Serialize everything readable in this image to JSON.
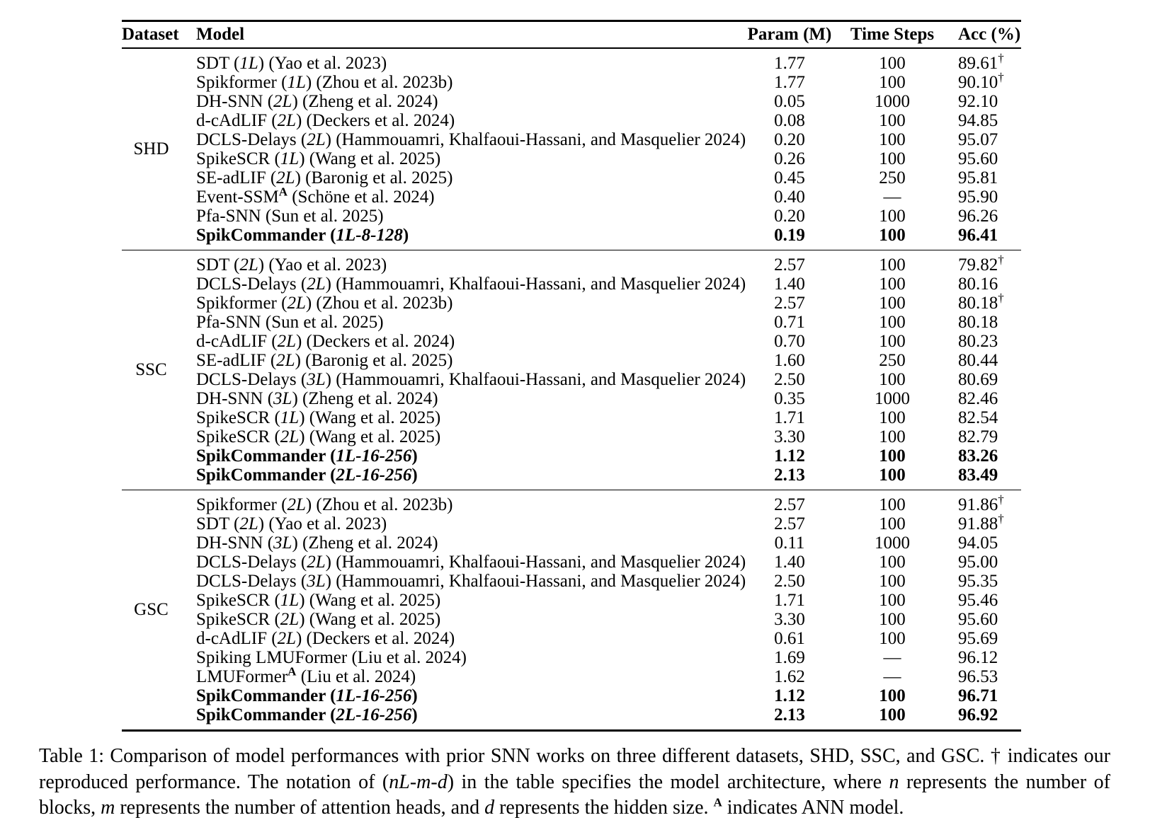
{
  "table": {
    "headers": {
      "dataset": "Dataset",
      "model": "Model",
      "param": "Param (M)",
      "steps": "Time Steps",
      "acc": "Acc (%)"
    },
    "sections": [
      {
        "dataset": "SHD",
        "rows": [
          {
            "model": [
              {
                "t": "SDT ("
              },
              {
                "t": "1L",
                "i": true
              },
              {
                "t": ") (Yao et al. 2023)"
              }
            ],
            "param": "1.77",
            "steps": "100",
            "acc": "89.61",
            "dagger": true
          },
          {
            "model": [
              {
                "t": "Spikformer ("
              },
              {
                "t": "1L",
                "i": true
              },
              {
                "t": ") (Zhou et al. 2023b)"
              }
            ],
            "param": "1.77",
            "steps": "100",
            "acc": "90.10",
            "dagger": true
          },
          {
            "model": [
              {
                "t": "DH-SNN ("
              },
              {
                "t": "2L",
                "i": true
              },
              {
                "t": ") (Zheng et al. 2024)"
              }
            ],
            "param": "0.05",
            "steps": "1000",
            "acc": "92.10"
          },
          {
            "model": [
              {
                "t": "d-cAdLIF ("
              },
              {
                "t": "2L",
                "i": true
              },
              {
                "t": ") (Deckers et al. 2024)"
              }
            ],
            "param": "0.08",
            "steps": "100",
            "acc": "94.85"
          },
          {
            "model": [
              {
                "t": "DCLS-Delays ("
              },
              {
                "t": "2L",
                "i": true
              },
              {
                "t": ") (Hammouamri, Khalfaoui-Hassani, and Masquelier 2024)"
              }
            ],
            "param": "0.20",
            "steps": "100",
            "acc": "95.07"
          },
          {
            "model": [
              {
                "t": "SpikeSCR ("
              },
              {
                "t": "1L",
                "i": true
              },
              {
                "t": ") (Wang et al. 2025)"
              }
            ],
            "param": "0.26",
            "steps": "100",
            "acc": "95.60"
          },
          {
            "model": [
              {
                "t": "SE-adLIF ("
              },
              {
                "t": "2L",
                "i": true
              },
              {
                "t": ") (Baronig et al. 2025)"
              }
            ],
            "param": "0.45",
            "steps": "250",
            "acc": "95.81"
          },
          {
            "model": [
              {
                "t": "Event-SSM"
              },
              {
                "t": "A",
                "sup": true,
                "b": true
              },
              {
                "t": " (Schöne et al. 2024)"
              }
            ],
            "param": "0.40",
            "steps": "—",
            "acc": "95.90"
          },
          {
            "model": [
              {
                "t": "Pfa-SNN (Sun et al. 2025)"
              }
            ],
            "param": "0.20",
            "steps": "100",
            "acc": "96.26"
          },
          {
            "model": [
              {
                "t": "SpikCommander ("
              },
              {
                "t": "1L-8-128",
                "i": true
              },
              {
                "t": ")"
              }
            ],
            "param": "0.19",
            "steps": "100",
            "acc": "96.41",
            "bold": true
          }
        ]
      },
      {
        "dataset": "SSC",
        "rows": [
          {
            "model": [
              {
                "t": "SDT ("
              },
              {
                "t": "2L",
                "i": true
              },
              {
                "t": ") (Yao et al. 2023)"
              }
            ],
            "param": "2.57",
            "steps": "100",
            "acc": "79.82",
            "dagger": true
          },
          {
            "model": [
              {
                "t": "DCLS-Delays ("
              },
              {
                "t": "2L",
                "i": true
              },
              {
                "t": ") (Hammouamri, Khalfaoui-Hassani, and Masquelier 2024)"
              }
            ],
            "param": "1.40",
            "steps": "100",
            "acc": "80.16"
          },
          {
            "model": [
              {
                "t": "Spikformer ("
              },
              {
                "t": "2L",
                "i": true
              },
              {
                "t": ") (Zhou et al. 2023b)"
              }
            ],
            "param": "2.57",
            "steps": "100",
            "acc": "80.18",
            "dagger": true
          },
          {
            "model": [
              {
                "t": "Pfa-SNN (Sun et al. 2025)"
              }
            ],
            "param": "0.71",
            "steps": "100",
            "acc": "80.18"
          },
          {
            "model": [
              {
                "t": "d-cAdLIF ("
              },
              {
                "t": "2L",
                "i": true
              },
              {
                "t": ") (Deckers et al. 2024)"
              }
            ],
            "param": "0.70",
            "steps": "100",
            "acc": "80.23"
          },
          {
            "model": [
              {
                "t": "SE-adLIF ("
              },
              {
                "t": "2L",
                "i": true
              },
              {
                "t": ") (Baronig et al. 2025)"
              }
            ],
            "param": "1.60",
            "steps": "250",
            "acc": "80.44"
          },
          {
            "model": [
              {
                "t": "DCLS-Delays ("
              },
              {
                "t": "3L",
                "i": true
              },
              {
                "t": ") (Hammouamri, Khalfaoui-Hassani, and Masquelier 2024)"
              }
            ],
            "param": "2.50",
            "steps": "100",
            "acc": "80.69"
          },
          {
            "model": [
              {
                "t": "DH-SNN ("
              },
              {
                "t": "3L",
                "i": true
              },
              {
                "t": ") (Zheng et al. 2024)"
              }
            ],
            "param": "0.35",
            "steps": "1000",
            "acc": "82.46"
          },
          {
            "model": [
              {
                "t": "SpikeSCR ("
              },
              {
                "t": "1L",
                "i": true
              },
              {
                "t": ") (Wang et al. 2025)"
              }
            ],
            "param": "1.71",
            "steps": "100",
            "acc": "82.54"
          },
          {
            "model": [
              {
                "t": "SpikeSCR ("
              },
              {
                "t": "2L",
                "i": true
              },
              {
                "t": ") (Wang et al. 2025)"
              }
            ],
            "param": "3.30",
            "steps": "100",
            "acc": "82.79"
          },
          {
            "model": [
              {
                "t": "SpikCommander ("
              },
              {
                "t": "1L-16-256",
                "i": true
              },
              {
                "t": ")"
              }
            ],
            "param": "1.12",
            "steps": "100",
            "acc": "83.26",
            "bold": true
          },
          {
            "model": [
              {
                "t": "SpikCommander ("
              },
              {
                "t": "2L-16-256",
                "i": true
              },
              {
                "t": ")"
              }
            ],
            "param": "2.13",
            "steps": "100",
            "acc": "83.49",
            "bold": true
          }
        ]
      },
      {
        "dataset": "GSC",
        "rows": [
          {
            "model": [
              {
                "t": "Spikformer ("
              },
              {
                "t": "2L",
                "i": true
              },
              {
                "t": ") (Zhou et al. 2023b)"
              }
            ],
            "param": "2.57",
            "steps": "100",
            "acc": "91.86",
            "dagger": true
          },
          {
            "model": [
              {
                "t": "SDT ("
              },
              {
                "t": "2L",
                "i": true
              },
              {
                "t": ") (Yao et al. 2023)"
              }
            ],
            "param": "2.57",
            "steps": "100",
            "acc": "91.88",
            "dagger": true
          },
          {
            "model": [
              {
                "t": "DH-SNN ("
              },
              {
                "t": "3L",
                "i": true
              },
              {
                "t": ") (Zheng et al. 2024)"
              }
            ],
            "param": "0.11",
            "steps": "1000",
            "acc": "94.05"
          },
          {
            "model": [
              {
                "t": "DCLS-Delays ("
              },
              {
                "t": "2L",
                "i": true
              },
              {
                "t": ") (Hammouamri, Khalfaoui-Hassani, and Masquelier 2024)"
              }
            ],
            "param": "1.40",
            "steps": "100",
            "acc": "95.00"
          },
          {
            "model": [
              {
                "t": "DCLS-Delays ("
              },
              {
                "t": "3L",
                "i": true
              },
              {
                "t": ") (Hammouamri, Khalfaoui-Hassani, and Masquelier 2024)"
              }
            ],
            "param": "2.50",
            "steps": "100",
            "acc": "95.35"
          },
          {
            "model": [
              {
                "t": "SpikeSCR ("
              },
              {
                "t": "1L",
                "i": true
              },
              {
                "t": ") (Wang et al. 2025)"
              }
            ],
            "param": "1.71",
            "steps": "100",
            "acc": "95.46"
          },
          {
            "model": [
              {
                "t": "SpikeSCR ("
              },
              {
                "t": "2L",
                "i": true
              },
              {
                "t": ") (Wang et al. 2025)"
              }
            ],
            "param": "3.30",
            "steps": "100",
            "acc": "95.60"
          },
          {
            "model": [
              {
                "t": "d-cAdLIF ("
              },
              {
                "t": "2L",
                "i": true
              },
              {
                "t": ") (Deckers et al. 2024)"
              }
            ],
            "param": "0.61",
            "steps": "100",
            "acc": "95.69"
          },
          {
            "model": [
              {
                "t": "Spiking LMUFormer (Liu et al. 2024)"
              }
            ],
            "param": "1.69",
            "steps": "—",
            "acc": "96.12"
          },
          {
            "model": [
              {
                "t": "LMUFormer"
              },
              {
                "t": "A",
                "sup": true,
                "b": true
              },
              {
                "t": " (Liu et al. 2024)"
              }
            ],
            "param": "1.62",
            "steps": "—",
            "acc": "96.53"
          },
          {
            "model": [
              {
                "t": "SpikCommander ("
              },
              {
                "t": "1L-16-256",
                "i": true
              },
              {
                "t": ")"
              }
            ],
            "param": "1.12",
            "steps": "100",
            "acc": "96.71",
            "bold": true
          },
          {
            "model": [
              {
                "t": "SpikCommander ("
              },
              {
                "t": "2L-16-256",
                "i": true
              },
              {
                "t": ")"
              }
            ],
            "param": "2.13",
            "steps": "100",
            "acc": "96.92",
            "bold": true
          }
        ]
      }
    ],
    "dagger_symbol": "†"
  },
  "caption": {
    "segments": [
      {
        "t": "Table 1: Comparison of model performances with prior SNN works on three different datasets, SHD, SSC, and GSC. † indicates our reproduced performance. The notation of ("
      },
      {
        "t": "nL-m-d",
        "i": true
      },
      {
        "t": ") in the table specifies the model architecture, where "
      },
      {
        "t": "n",
        "i": true
      },
      {
        "t": " represents the number of blocks, "
      },
      {
        "t": "m",
        "i": true
      },
      {
        "t": " represents the number of attention heads, and "
      },
      {
        "t": "d",
        "i": true
      },
      {
        "t": " represents the hidden size. "
      },
      {
        "t": "A",
        "sup": true,
        "b": true
      },
      {
        "t": " indicates ANN model."
      }
    ]
  }
}
